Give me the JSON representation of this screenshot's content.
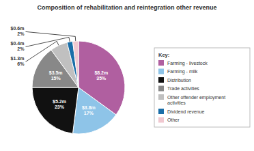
{
  "chart_data": {
    "type": "pie",
    "title": "Composition of rehabilitation and reintegration other revenue",
    "categories": [
      "Farming - livestock",
      "Farming - milk",
      "Distribution",
      "Trade activities",
      "Other offender employment\nactivities",
      "Dividend revenue",
      "Other"
    ],
    "values": [
      35,
      17,
      23,
      15,
      6,
      2,
      2
    ],
    "value_labels": [
      "35%",
      "17%",
      "23%",
      "15%",
      "6%",
      "2%",
      "2%"
    ],
    "amounts": [
      8.2,
      3.8,
      5.2,
      3.5,
      1.3,
      0.4,
      0.6
    ],
    "amount_labels": [
      "$8.2m",
      "$3.8m",
      "$5.2m",
      "$3.5m",
      "$1.3m",
      "$0.4m",
      "$0.6m"
    ],
    "colors": [
      "#b05fa0",
      "#8ec4e8",
      "#111111",
      "#888888",
      "#c0c0c0",
      "#1a6ea8",
      "#f0c8d0"
    ],
    "data_labels": true,
    "legend": "right",
    "legend_title": "Key:"
  }
}
